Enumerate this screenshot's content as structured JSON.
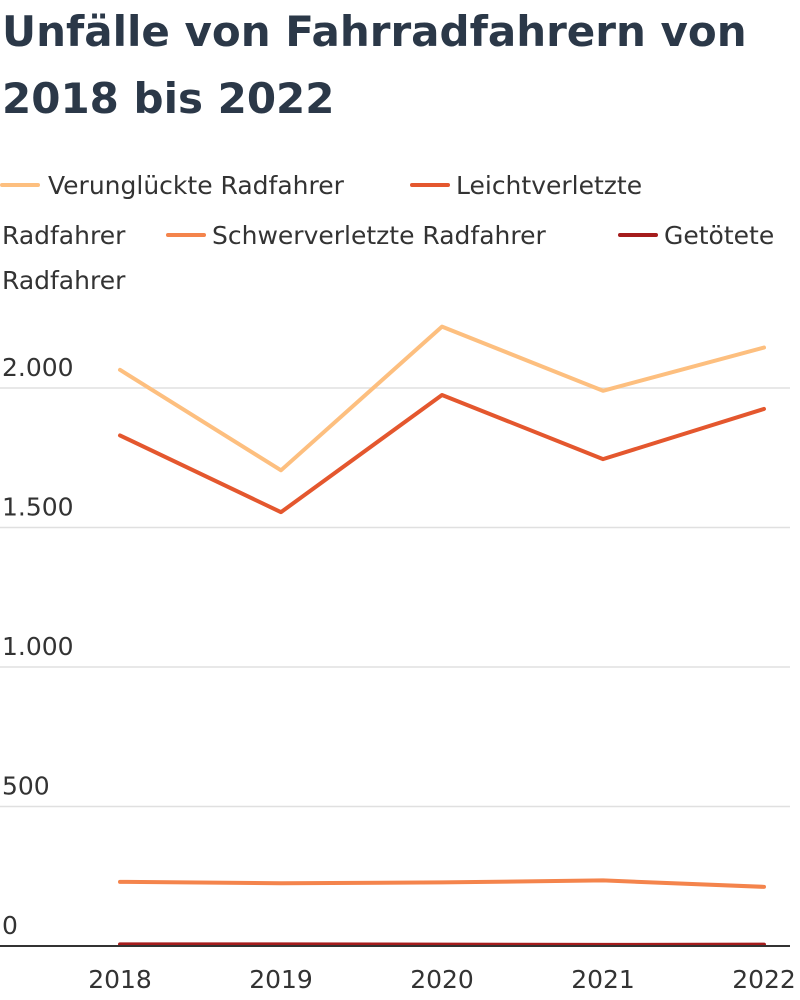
{
  "chart_data": {
    "type": "line",
    "title": "Unfälle von Fahrradfahrern von 2018 bis 2022",
    "categories": [
      "2018",
      "2019",
      "2020",
      "2021",
      "2022"
    ],
    "ylim": [
      0,
      2000
    ],
    "yticks": [
      {
        "value": 0,
        "label": "0"
      },
      {
        "value": 500,
        "label": "500"
      },
      {
        "value": 1000,
        "label": "1.000"
      },
      {
        "value": 1500,
        "label": "1.500"
      },
      {
        "value": 2000,
        "label": "2.000"
      }
    ],
    "grid": true,
    "legend_position": "top",
    "series": [
      {
        "name": "Verunglückte Radfahrer",
        "color": "#fdbf7f",
        "values": [
          2065,
          1705,
          2220,
          1990,
          2145
        ]
      },
      {
        "name": "Leichtverletzte Radfahrer",
        "color": "#e4572e",
        "values": [
          1830,
          1555,
          1975,
          1745,
          1925
        ]
      },
      {
        "name": "Schwerverletzte Radfahrer",
        "color": "#f4844c",
        "values": [
          230,
          225,
          228,
          235,
          212
        ]
      },
      {
        "name": "Getötete Radfahrer",
        "color": "#a51c1c",
        "values": [
          6,
          6,
          5,
          4,
          5
        ]
      }
    ]
  }
}
